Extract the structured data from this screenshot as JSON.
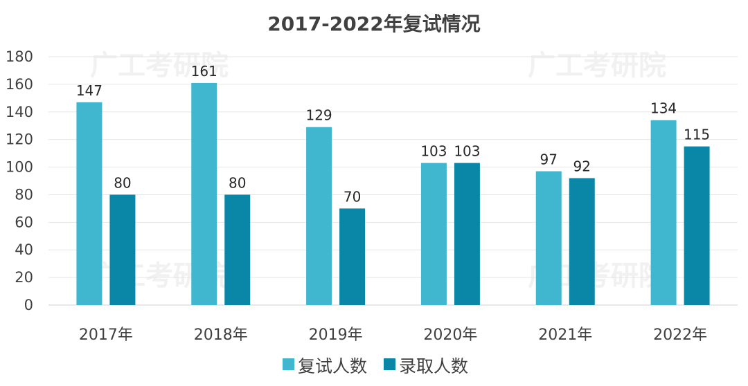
{
  "chart_data": {
    "type": "bar",
    "title": "2017-2022年复试情况",
    "categories": [
      "2017年",
      "2018年",
      "2019年",
      "2020年",
      "2021年",
      "2022年"
    ],
    "series": [
      {
        "name": "复试人数",
        "values": [
          147,
          161,
          129,
          103,
          97,
          134
        ],
        "color": "#41b7cf"
      },
      {
        "name": "录取人数",
        "values": [
          80,
          80,
          70,
          103,
          92,
          115
        ],
        "color": "#0a87a7"
      }
    ],
    "yticks": [
      "0",
      "20",
      "40",
      "60",
      "80",
      "100",
      "120",
      "140",
      "160",
      "180"
    ],
    "ylim": [
      0,
      180
    ],
    "grid": true,
    "legend_position": "bottom",
    "watermark": "广工考研院"
  }
}
